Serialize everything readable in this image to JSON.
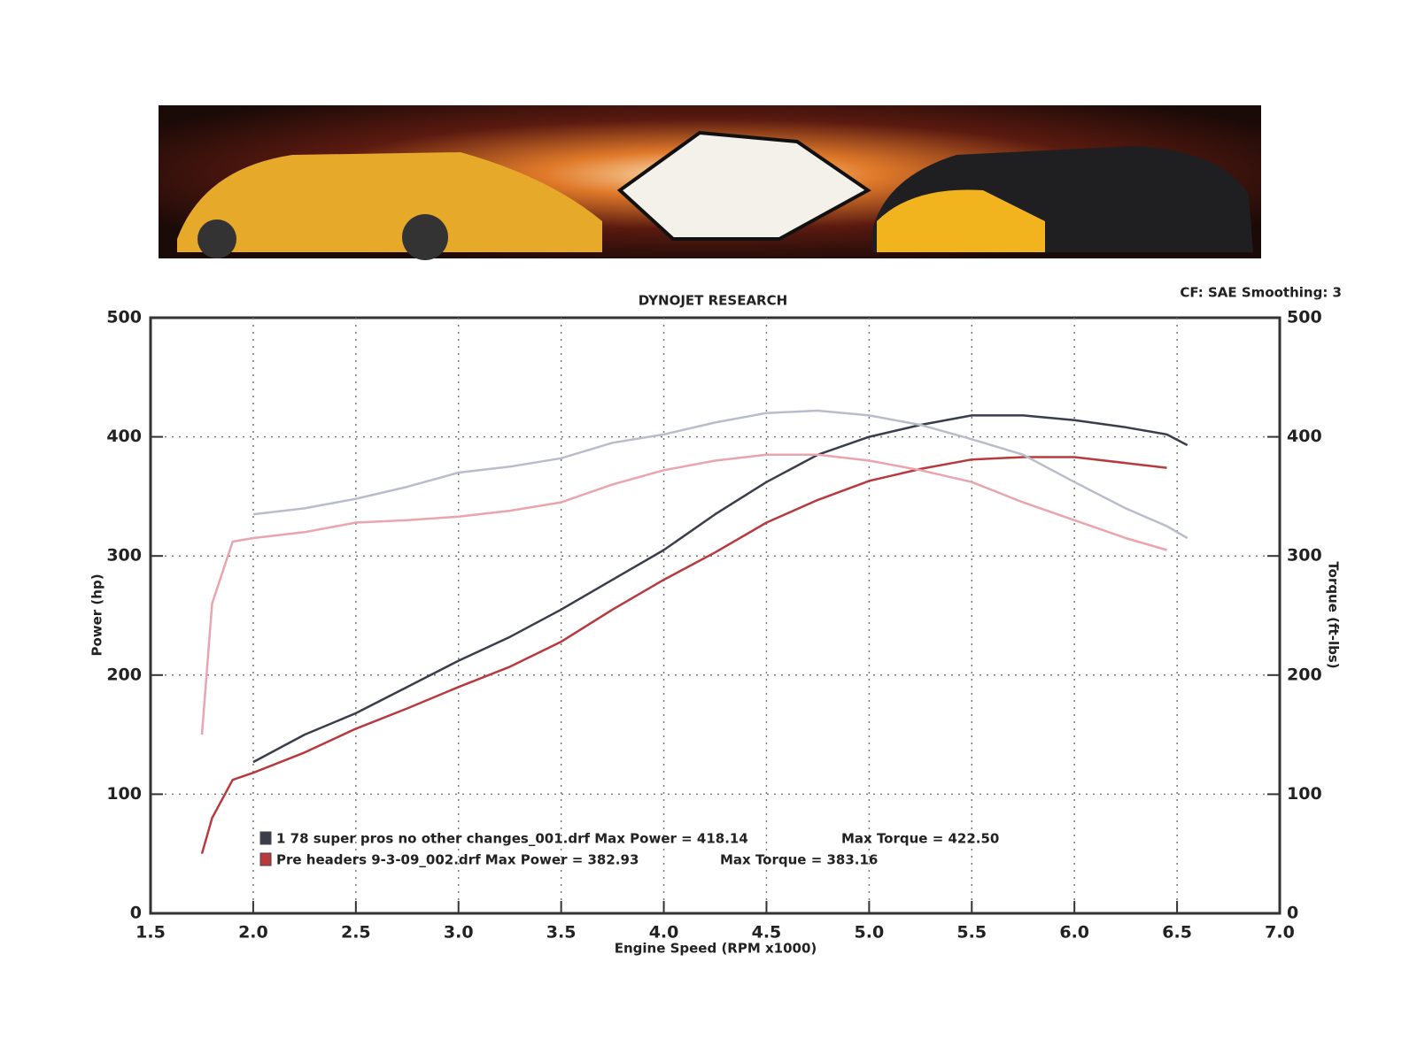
{
  "chart_data": {
    "type": "line",
    "title": "DYNOJET RESEARCH",
    "annotation": "CF: SAE  Smoothing: 3",
    "xlabel": "Engine Speed (RPM x1000)",
    "ylabel": "Power (hp)",
    "y2label": "Torque (ft-lbs)",
    "x": [
      1.75,
      1.8,
      1.9,
      2.0,
      2.25,
      2.5,
      2.75,
      3.0,
      3.25,
      3.5,
      3.75,
      4.0,
      4.25,
      4.5,
      4.75,
      5.0,
      5.25,
      5.5,
      5.75,
      6.0,
      6.25,
      6.45,
      6.55
    ],
    "series": [
      {
        "name": "1 78 super pros no other changes_001.drf Max Power = 418.14",
        "color": "#3a3d4c",
        "values": [
          null,
          null,
          null,
          127,
          150,
          168,
          190,
          212,
          232,
          255,
          280,
          305,
          335,
          362,
          385,
          400,
          410,
          418,
          418,
          414,
          408,
          402,
          393
        ]
      },
      {
        "name": "Pre headers 9-3-09_002.drf Max Power = 382.93",
        "color": "#b83a3e",
        "values": [
          50,
          80,
          112,
          118,
          135,
          155,
          172,
          190,
          207,
          228,
          255,
          280,
          303,
          328,
          347,
          363,
          373,
          381,
          383,
          383,
          378,
          374,
          null
        ]
      },
      {
        "name": "Max Torque = 422.50",
        "color": "#b9bccb",
        "axis": "y2",
        "values": [
          null,
          null,
          null,
          335,
          340,
          348,
          358,
          370,
          375,
          382,
          395,
          402,
          412,
          420,
          422,
          418,
          410,
          398,
          385,
          362,
          340,
          325,
          315
        ]
      },
      {
        "name": "Max Torque = 383.16",
        "color": "#eaa4ae",
        "axis": "y2",
        "values": [
          150,
          260,
          312,
          315,
          320,
          328,
          330,
          333,
          338,
          345,
          360,
          372,
          380,
          385,
          385,
          380,
          372,
          362,
          345,
          330,
          315,
          305,
          null
        ]
      }
    ],
    "xlim": [
      1.5,
      7.0
    ],
    "xticks": [
      1.5,
      {
        "value": 2,
        "label": "2.0"
      },
      2.5,
      {
        "value": 3,
        "label": "3.0"
      },
      3.5,
      {
        "value": 4,
        "label": "4.0"
      },
      4.5,
      {
        "value": 5,
        "label": "5.0"
      },
      5.5,
      {
        "value": 6,
        "label": "6.0"
      },
      6.5,
      {
        "value": 7,
        "label": "7.0"
      }
    ],
    "ylim": [
      0,
      500
    ],
    "yticks": [
      0,
      100,
      200,
      300,
      400,
      500
    ],
    "y2lim": [
      0,
      500
    ],
    "y2ticks": [
      0,
      100,
      200,
      300,
      400,
      500
    ],
    "grid": true
  }
}
